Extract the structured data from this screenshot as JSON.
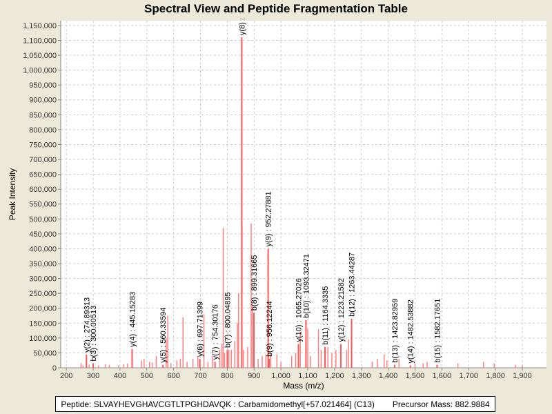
{
  "chart_data": {
    "type": "bar",
    "title": "Spectral View and Peptide Fragmentation Table",
    "xlabel": "Mass (m/z)",
    "ylabel": "Peak Intensity",
    "xlim": [
      179,
      1990
    ],
    "ylim": [
      0,
      1166000
    ],
    "xticks": [
      200,
      300,
      400,
      500,
      600,
      700,
      800,
      900,
      1000,
      1100,
      1200,
      1300,
      1400,
      1500,
      1600,
      1700,
      1800,
      1900
    ],
    "yticks": [
      0,
      50000,
      100000,
      150000,
      200000,
      250000,
      300000,
      350000,
      400000,
      450000,
      500000,
      550000,
      600000,
      650000,
      700000,
      750000,
      800000,
      850000,
      900000,
      950000,
      1000000,
      1050000,
      1100000,
      1150000
    ],
    "grid": true,
    "peak_color": "#ff5555",
    "annotated_peaks": [
      {
        "label": "y(2) : 274.89313",
        "mz": 274.89,
        "intensity": 44000
      },
      {
        "label": "b(3) : 300.00513",
        "mz": 300.01,
        "intensity": 15000
      },
      {
        "label": "y(4) : 445.15283",
        "mz": 445.15,
        "intensity": 63000
      },
      {
        "label": "y(5) : 560.33594",
        "mz": 560.34,
        "intensity": 10000
      },
      {
        "label": "y(6) : 697.71399",
        "mz": 697.71,
        "intensity": 30000
      },
      {
        "label": "y(7) : 754.30176",
        "mz": 754.3,
        "intensity": 20000
      },
      {
        "label": "b(7) : 800.04895",
        "mz": 800.05,
        "intensity": 60000
      },
      {
        "label": "y(8) :",
        "mz": 854.0,
        "intensity": 1110000
      },
      {
        "label": "b(8) : 899.31665",
        "mz": 899.32,
        "intensity": 185000
      },
      {
        "label": "y(9) : 952.27881",
        "mz": 952.28,
        "intensity": 400000
      },
      {
        "label": "b(9) : 956.12244",
        "mz": 956.12,
        "intensity": 30000
      },
      {
        "label": "y(10) : 1065.27026",
        "mz": 1065.27,
        "intensity": 80000
      },
      {
        "label": "b(10) : 1093.32471",
        "mz": 1093.32,
        "intensity": 160000
      },
      {
        "label": "b(11) : 1164.3335",
        "mz": 1164.33,
        "intensity": 70000
      },
      {
        "label": "y(12) : 1223.21582",
        "mz": 1223.22,
        "intensity": 80000
      },
      {
        "label": "b(12) : 1263.44287",
        "mz": 1263.44,
        "intensity": 165000
      },
      {
        "label": "b(13) : 1423.82959",
        "mz": 1423.83,
        "intensity": 10000
      },
      {
        "label": "y(14) : 1482.53882",
        "mz": 1482.54,
        "intensity": 8000
      },
      {
        "label": "b(15) : 1582.17651",
        "mz": 1582.18,
        "intensity": 10000
      }
    ],
    "other_peaks": [
      [
        255,
        15000
      ],
      [
        262,
        8000
      ],
      [
        285,
        10000
      ],
      [
        320,
        8000
      ],
      [
        345,
        12000
      ],
      [
        360,
        10000
      ],
      [
        395,
        8000
      ],
      [
        412,
        12000
      ],
      [
        428,
        14000
      ],
      [
        480,
        25000
      ],
      [
        490,
        30000
      ],
      [
        510,
        20000
      ],
      [
        520,
        18000
      ],
      [
        535,
        40000
      ],
      [
        572,
        100000
      ],
      [
        578,
        175000
      ],
      [
        590,
        15000
      ],
      [
        612,
        25000
      ],
      [
        625,
        30000
      ],
      [
        635,
        170000
      ],
      [
        650,
        20000
      ],
      [
        672,
        30000
      ],
      [
        690,
        40000
      ],
      [
        713,
        180000
      ],
      [
        728,
        20000
      ],
      [
        745,
        40000
      ],
      [
        772,
        60000
      ],
      [
        780,
        80000
      ],
      [
        785,
        470000
      ],
      [
        790,
        50000
      ],
      [
        806,
        60000
      ],
      [
        815,
        60000
      ],
      [
        828,
        90000
      ],
      [
        838,
        150000
      ],
      [
        842,
        250000
      ],
      [
        855,
        480000
      ],
      [
        860,
        60000
      ],
      [
        876,
        70000
      ],
      [
        889,
        485000
      ],
      [
        893,
        210000
      ],
      [
        915,
        30000
      ],
      [
        930,
        40000
      ],
      [
        944,
        45000
      ],
      [
        962,
        50000
      ],
      [
        985,
        45000
      ],
      [
        1000,
        20000
      ],
      [
        1040,
        40000
      ],
      [
        1055,
        50000
      ],
      [
        1072,
        120000
      ],
      [
        1100,
        130000
      ],
      [
        1110,
        40000
      ],
      [
        1140,
        130000
      ],
      [
        1150,
        60000
      ],
      [
        1175,
        70000
      ],
      [
        1190,
        50000
      ],
      [
        1205,
        60000
      ],
      [
        1245,
        60000
      ],
      [
        1252,
        95000
      ],
      [
        1340,
        20000
      ],
      [
        1360,
        30000
      ],
      [
        1385,
        45000
      ],
      [
        1395,
        25000
      ],
      [
        1440,
        30000
      ],
      [
        1500,
        15000
      ],
      [
        1530,
        15000
      ],
      [
        1545,
        20000
      ],
      [
        1660,
        15000
      ],
      [
        1755,
        20000
      ],
      [
        1795,
        15000
      ],
      [
        1875,
        10000
      ],
      [
        1900,
        8000
      ]
    ]
  },
  "footer": {
    "peptide": "Peptide: SLVAYHEVGHAVCGTLTPGHDAVQK : Carbamidomethyl[+57.021464] (C13)",
    "precursor": "Precursor Mass: 882.9884"
  }
}
